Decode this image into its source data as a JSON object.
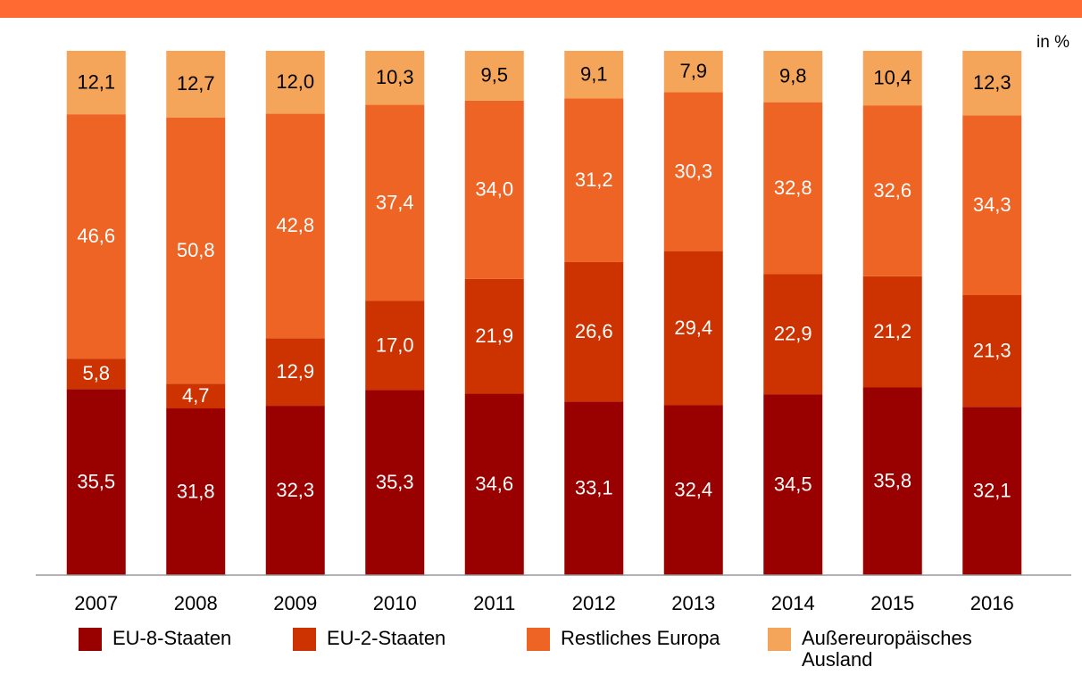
{
  "chart_data": {
    "type": "stacked_bar",
    "unit_label": "in %",
    "categories": [
      "2007",
      "2008",
      "2009",
      "2010",
      "2011",
      "2012",
      "2013",
      "2014",
      "2015",
      "2016"
    ],
    "ylim": [
      0,
      100
    ],
    "series": [
      {
        "name": "EU-8-Staaten",
        "color": "#990000",
        "values": [
          35.5,
          31.8,
          32.3,
          35.3,
          34.6,
          33.1,
          32.4,
          34.5,
          35.8,
          32.1
        ],
        "value_labels": [
          "35,5",
          "31,8",
          "32,3",
          "35,3",
          "34,6",
          "33,1",
          "32,4",
          "34,5",
          "35,8",
          "32,1"
        ]
      },
      {
        "name": "EU-2-Staaten",
        "color": "#cc3300",
        "values": [
          5.8,
          4.7,
          12.9,
          17.0,
          21.9,
          26.6,
          29.4,
          22.9,
          21.2,
          21.3
        ],
        "value_labels": [
          "5,8",
          "4,7",
          "12,9",
          "17,0",
          "21,9",
          "26,6",
          "29,4",
          "22,9",
          "21,2",
          "21,3"
        ]
      },
      {
        "name": "Restliches Europa",
        "color": "#ee6425",
        "values": [
          46.6,
          50.8,
          42.8,
          37.4,
          34.0,
          31.2,
          30.3,
          32.8,
          32.6,
          34.3
        ],
        "value_labels": [
          "46,6",
          "50,8",
          "42,8",
          "37,4",
          "34,0",
          "31,2",
          "30,3",
          "32,8",
          "32,6",
          "34,3"
        ]
      },
      {
        "name": "Außereuropäisches Ausland",
        "color": "#f5a55a",
        "values": [
          12.1,
          12.7,
          12.0,
          10.3,
          9.5,
          9.1,
          7.9,
          9.8,
          10.4,
          12.3
        ],
        "value_labels": [
          "12,1",
          "12,7",
          "12,0",
          "10,3",
          "9,5",
          "9,1",
          "7,9",
          "9,8",
          "10,4",
          "12,3"
        ]
      }
    ]
  }
}
